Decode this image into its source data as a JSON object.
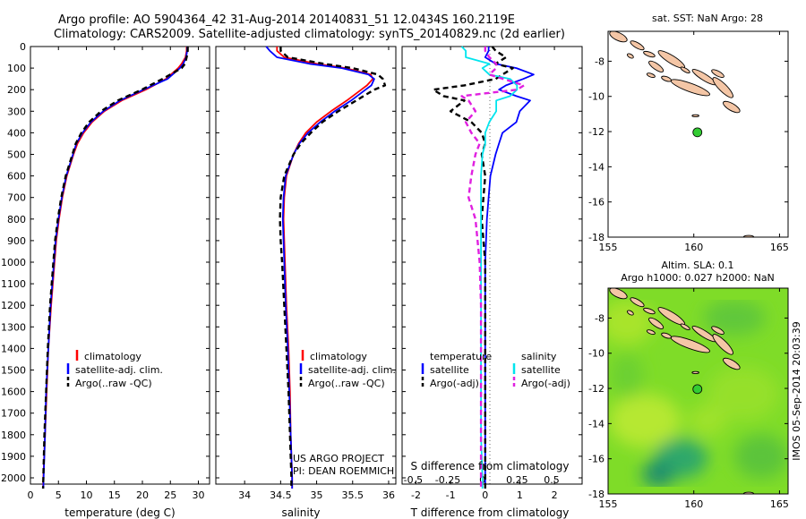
{
  "header": {
    "line1": "Argo profile: AO 5904364_42 31-Aug-2014 20140831_51 12.0434S 160.2119E",
    "line2": "Climatology: CARS2009. Satellite-adjusted climatology: synTS_20140829.nc (2d earlier)"
  },
  "colors": {
    "climatology": "#ff0000",
    "satellite": "#0000ff",
    "argo": "#000000",
    "salinity_satellite": "#00e5ee",
    "salinity_argo": "#e020e0",
    "land": "#f4c6a6",
    "marker": "#33cc33"
  },
  "credits": {
    "project": "US ARGO PROJECT",
    "pi": "PI: DEAN ROEMMICH"
  },
  "timestamp": "IMOS 05-Sep-2014 20:03:39",
  "chart_data": [
    {
      "id": "temperature",
      "type": "line",
      "xlabel": "temperature (deg C)",
      "xlim": [
        0,
        32
      ],
      "xticks": [
        0,
        5,
        10,
        15,
        20,
        25,
        30
      ],
      "ylim": [
        2080,
        0
      ],
      "yticks": [
        0,
        100,
        200,
        300,
        400,
        500,
        600,
        700,
        800,
        900,
        1000,
        1100,
        1200,
        1300,
        1400,
        1500,
        1600,
        1700,
        1800,
        1900,
        2000
      ],
      "legend": [
        "climatology",
        "satellite-adj. clim.",
        "Argo(..raw -QC)"
      ],
      "depth": [
        0,
        20,
        50,
        80,
        100,
        150,
        200,
        250,
        300,
        350,
        400,
        450,
        500,
        600,
        700,
        800,
        900,
        1000,
        1200,
        1400,
        1600,
        1800,
        2000,
        2050
      ],
      "series": [
        {
          "name": "climatology",
          "values": [
            27.9,
            27.9,
            27.7,
            27.0,
            26.4,
            24.2,
            20.6,
            16.3,
            13.2,
            11.0,
            9.5,
            8.4,
            7.7,
            6.5,
            5.7,
            5.1,
            4.6,
            4.3,
            3.7,
            3.2,
            2.9,
            2.6,
            2.3,
            2.25
          ]
        },
        {
          "name": "satellite-adj. clim.",
          "values": [
            28.0,
            28.0,
            27.8,
            27.3,
            26.7,
            24.5,
            20.2,
            16.0,
            13.0,
            10.8,
            9.3,
            8.2,
            7.6,
            6.4,
            5.6,
            5.0,
            4.5,
            4.2,
            3.6,
            3.2,
            2.8,
            2.6,
            2.35,
            2.3
          ]
        },
        {
          "name": "Argo(..raw -QC)",
          "values": [
            28.1,
            28.1,
            27.9,
            27.6,
            27.0,
            23.6,
            19.9,
            15.6,
            12.6,
            10.5,
            9.1,
            8.1,
            7.5,
            6.3,
            5.5,
            4.9,
            4.4,
            4.1,
            3.5,
            3.1,
            2.8,
            2.5,
            2.3,
            2.25
          ]
        }
      ]
    },
    {
      "id": "salinity",
      "type": "line",
      "xlabel": "salinity",
      "xlim": [
        33.6,
        36.1
      ],
      "xticks": [
        34,
        34.5,
        35,
        35.5,
        36
      ],
      "ylim": [
        2080,
        0
      ],
      "legend": [
        "climatology",
        "satellite-adj. clim.",
        "Argo(..raw -QC)"
      ],
      "depth": [
        0,
        20,
        50,
        80,
        100,
        130,
        150,
        180,
        200,
        250,
        300,
        350,
        400,
        450,
        500,
        600,
        700,
        800,
        900,
        1000,
        1200,
        1400,
        1600,
        1800,
        2000,
        2050
      ],
      "series": [
        {
          "name": "climatology",
          "values": [
            34.45,
            34.45,
            34.55,
            35.0,
            35.4,
            35.75,
            35.78,
            35.7,
            35.62,
            35.42,
            35.2,
            35.0,
            34.85,
            34.75,
            34.68,
            34.58,
            34.55,
            34.54,
            34.55,
            34.56,
            34.58,
            34.61,
            34.63,
            34.64,
            34.66,
            34.66
          ]
        },
        {
          "name": "satellite-adj. clim.",
          "values": [
            34.3,
            34.35,
            34.45,
            34.9,
            35.35,
            35.72,
            35.8,
            35.76,
            35.68,
            35.48,
            35.25,
            35.05,
            34.88,
            34.76,
            34.68,
            34.57,
            34.54,
            34.53,
            34.54,
            34.55,
            34.57,
            34.6,
            34.62,
            34.64,
            34.66,
            34.66
          ]
        },
        {
          "name": "Argo(..raw -QC)",
          "values": [
            34.5,
            34.5,
            34.6,
            35.1,
            35.5,
            35.85,
            35.92,
            35.95,
            35.8,
            35.55,
            35.3,
            35.08,
            34.92,
            34.78,
            34.68,
            34.55,
            34.5,
            34.49,
            34.5,
            34.52,
            34.55,
            34.58,
            34.61,
            34.63,
            34.65,
            34.65
          ]
        }
      ]
    },
    {
      "id": "difference",
      "type": "line",
      "xlabel": "T difference from climatology",
      "xlabel2": "S difference from climatology",
      "xlim": [
        -2.4,
        2.8
      ],
      "xticks": [
        -2,
        -1,
        0,
        1,
        2
      ],
      "xticks2": [
        -0.5,
        -0.25,
        0,
        0.25,
        0.5
      ],
      "xticks2_labels": [
        "-0.5",
        "-0.25",
        "0",
        "0.25",
        "0.5"
      ],
      "ylim": [
        2080,
        0
      ],
      "legend_headers": [
        "temperature",
        "salinity"
      ],
      "legend": [
        "satellite",
        "Argo(-adj)",
        "satellite",
        "Argo(-adj)"
      ],
      "depth": [
        0,
        20,
        50,
        80,
        100,
        130,
        150,
        180,
        200,
        230,
        250,
        300,
        350,
        400,
        450,
        500,
        600,
        700,
        800,
        1000,
        1200,
        1400,
        1600,
        1800,
        2000,
        2050
      ],
      "series": [
        {
          "name": "T satellite",
          "values": [
            0.1,
            0.1,
            0.0,
            0.3,
            0.9,
            1.4,
            1.1,
            0.6,
            0.4,
            0.9,
            1.3,
            1.0,
            0.9,
            0.5,
            0.4,
            0.3,
            0.15,
            0.1,
            0.05,
            0.0,
            0.0,
            0.0,
            0.0,
            0.0,
            0.0,
            0.0
          ]
        },
        {
          "name": "T Argo(-adj)",
          "values": [
            0.2,
            0.3,
            0.6,
            0.3,
            0.8,
            0.5,
            0.3,
            -0.6,
            -1.5,
            -1.2,
            -0.6,
            -1.0,
            -0.4,
            -0.1,
            0.0,
            -0.1,
            0.0,
            -0.05,
            -0.1,
            0.0,
            0.0,
            0.0,
            0.0,
            0.0,
            0.0,
            0.0
          ]
        },
        {
          "name": "S satellite",
          "values": [
            -0.15,
            -0.12,
            -0.12,
            0.05,
            0.0,
            0.05,
            0.2,
            0.25,
            0.25,
            0.2,
            0.1,
            0.1,
            0.05,
            0.02,
            0.02,
            0.0,
            -0.01,
            -0.01,
            -0.01,
            -0.01,
            -0.01,
            -0.01,
            -0.01,
            -0.01,
            0.0,
            0.0
          ]
        },
        {
          "name": "S Argo(-adj)",
          "values": [
            0.02,
            0.02,
            0.05,
            0.1,
            0.1,
            0.05,
            0.15,
            0.3,
            0.25,
            -0.15,
            -0.1,
            -0.05,
            -0.12,
            -0.08,
            -0.02,
            -0.05,
            -0.08,
            -0.1,
            -0.05,
            -0.02,
            -0.01,
            -0.01,
            -0.01,
            -0.01,
            -0.01,
            -0.01
          ]
        }
      ]
    }
  ],
  "maps": [
    {
      "id": "sst-map",
      "title": "sat. SST: NaN Argo: 28",
      "xticks": [
        155,
        160,
        165
      ],
      "yticks": [
        -8,
        -10,
        -12,
        -14,
        -16,
        -18
      ],
      "lon": [
        155,
        165.5
      ],
      "lat": [
        -6.3,
        -18
      ],
      "argo_position": [
        160.21,
        -12.04
      ]
    },
    {
      "id": "sla-map",
      "title": "Altim. SLA: 0.1",
      "subtitle": "Argo h1000: 0.027 h2000: NaN",
      "xticks": [
        155,
        160,
        165
      ],
      "yticks": [
        -8,
        -10,
        -12,
        -14,
        -16,
        -18
      ],
      "lon": [
        155,
        165.5
      ],
      "lat": [
        -6.3,
        -18
      ],
      "argo_position": [
        160.21,
        -12.04
      ]
    }
  ]
}
